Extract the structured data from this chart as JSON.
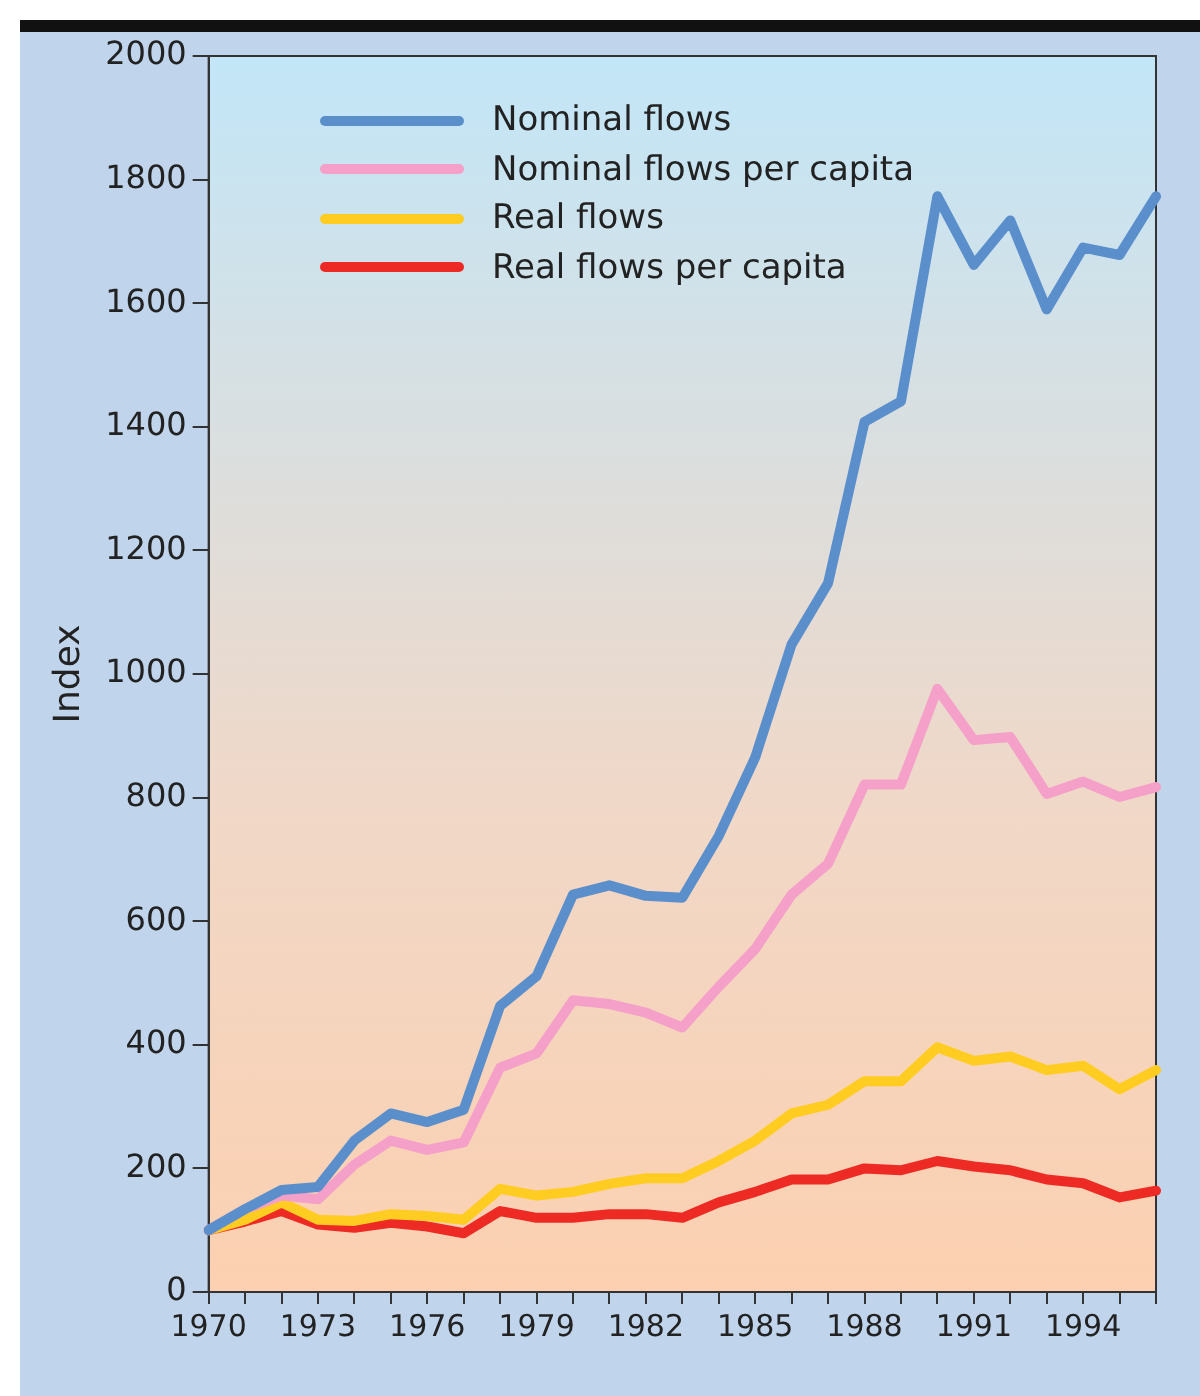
{
  "chart_data": {
    "type": "line",
    "ylabel": "Index",
    "categories": [
      "1970",
      null,
      null,
      "1973",
      null,
      null,
      "1976",
      null,
      null,
      "1979",
      null,
      null,
      "1982",
      null,
      null,
      "1985",
      null,
      null,
      "1988",
      null,
      null,
      "1991",
      null,
      null,
      "1994",
      null,
      null
    ],
    "series": [
      {
        "name": "Nominal flows",
        "color": "#5b8fcc",
        "values": [
          100,
          134,
          165,
          170,
          245,
          289,
          275,
          295,
          463,
          511,
          643,
          658,
          641,
          638,
          738,
          865,
          1048,
          1147,
          1408,
          1441,
          1773,
          1662,
          1734,
          1590,
          1690,
          1678,
          1773
        ]
      },
      {
        "name": "Nominal flows per capita",
        "color": "#f4a0c8",
        "values": [
          100,
          134,
          156,
          150,
          206,
          245,
          230,
          242,
          363,
          386,
          472,
          466,
          452,
          428,
          494,
          555,
          643,
          693,
          821,
          821,
          976,
          893,
          898,
          806,
          826,
          801,
          817
        ]
      },
      {
        "name": "Real flows",
        "color": "#ffcc22",
        "values": [
          100,
          117,
          145,
          117,
          115,
          126,
          123,
          117,
          167,
          156,
          162,
          175,
          184,
          184,
          212,
          245,
          289,
          303,
          341,
          341,
          396,
          374,
          381,
          359,
          366,
          328,
          359
        ]
      },
      {
        "name": "Real flows per capita",
        "color": "#ee2a24",
        "values": [
          100,
          114,
          131,
          109,
          104,
          112,
          106,
          95,
          131,
          120,
          120,
          126,
          126,
          120,
          145,
          162,
          182,
          182,
          200,
          197,
          212,
          203,
          197,
          182,
          176,
          153,
          164
        ]
      }
    ],
    "ylim": [
      0,
      2000
    ],
    "yticks": [
      0,
      200,
      400,
      600,
      800,
      1000,
      1200,
      1400,
      1600,
      1800,
      2000
    ],
    "grid": false,
    "legend": "top left",
    "marker": "none",
    "line_style": "solid"
  }
}
